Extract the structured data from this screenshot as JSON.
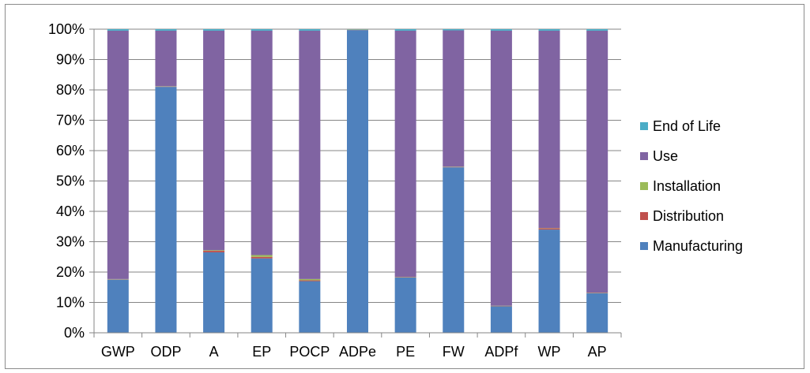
{
  "chart_data": {
    "type": "bar",
    "stacked": true,
    "percent": true,
    "title": "",
    "xlabel": "",
    "ylabel": "",
    "ylim": [
      0,
      100
    ],
    "y_ticks": [
      "0%",
      "10%",
      "20%",
      "30%",
      "40%",
      "50%",
      "60%",
      "70%",
      "80%",
      "90%",
      "100%"
    ],
    "grid": true,
    "legend_position": "right",
    "categories": [
      "GWP",
      "ODP",
      "A",
      "EP",
      "POCP",
      "ADPe",
      "PE",
      "FW",
      "ADPf",
      "WP",
      "AP"
    ],
    "series": [
      {
        "name": "Manufacturing",
        "color": "#4f81bd",
        "values": [
          17.5,
          81,
          26.5,
          24.5,
          17,
          99.7,
          18.2,
          54.5,
          8.7,
          34,
          13
        ]
      },
      {
        "name": "Distribution",
        "color": "#c0504d",
        "values": [
          0.1,
          0.1,
          0.5,
          0.5,
          0.3,
          0.1,
          0.1,
          0.1,
          0.1,
          0.4,
          0.1
        ]
      },
      {
        "name": "Installation",
        "color": "#9bbb59",
        "values": [
          0.1,
          0.1,
          0.2,
          0.6,
          0.4,
          0.1,
          0.1,
          0.1,
          0.1,
          0.1,
          0.1
        ]
      },
      {
        "name": "Use",
        "color": "#8064a2",
        "values": [
          81.8,
          18.3,
          72.3,
          73.9,
          81.8,
          0.0,
          81.1,
          44.9,
          90.6,
          65.0,
          86.3
        ]
      },
      {
        "name": "End of Life",
        "color": "#4bacc6",
        "values": [
          0.5,
          0.5,
          0.5,
          0.5,
          0.5,
          0.1,
          0.5,
          0.4,
          0.5,
          0.5,
          0.5
        ]
      }
    ],
    "legend_order": [
      "End of Life",
      "Use",
      "Installation",
      "Distribution",
      "Manufacturing"
    ]
  }
}
